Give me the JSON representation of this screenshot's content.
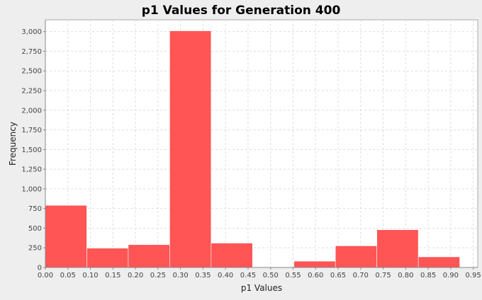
{
  "chart_data": {
    "type": "bar",
    "title": "p1 Values for Generation 400",
    "xlabel": "p1 Values",
    "ylabel": "Frequency",
    "xlim": [
      0.0,
      0.96
    ],
    "ylim": [
      0,
      3150
    ],
    "grid": true,
    "legend": "none",
    "x_ticks": [
      "0.00",
      "0.05",
      "0.10",
      "0.15",
      "0.20",
      "0.25",
      "0.30",
      "0.35",
      "0.40",
      "0.45",
      "0.50",
      "0.55",
      "0.60",
      "0.65",
      "0.70",
      "0.75",
      "0.80",
      "0.85",
      "0.90",
      "0.95"
    ],
    "y_ticks": [
      "0",
      "250",
      "500",
      "750",
      "1,000",
      "1,250",
      "1,500",
      "1,750",
      "2,000",
      "2,250",
      "2,500",
      "2,750",
      "3,000"
    ],
    "bins": [
      {
        "start": 0.0,
        "end": 0.092,
        "value": 790
      },
      {
        "start": 0.092,
        "end": 0.184,
        "value": 245
      },
      {
        "start": 0.184,
        "end": 0.276,
        "value": 290
      },
      {
        "start": 0.276,
        "end": 0.368,
        "value": 3010
      },
      {
        "start": 0.368,
        "end": 0.46,
        "value": 310
      },
      {
        "start": 0.46,
        "end": 0.552,
        "value": 0
      },
      {
        "start": 0.552,
        "end": 0.644,
        "value": 80
      },
      {
        "start": 0.644,
        "end": 0.736,
        "value": 275
      },
      {
        "start": 0.736,
        "end": 0.828,
        "value": 480
      },
      {
        "start": 0.828,
        "end": 0.92,
        "value": 135
      }
    ],
    "colors": {
      "bar": "#ff5555",
      "plot_bg": "#ffffff",
      "grid": "#dddddd",
      "axis": "#888888"
    }
  }
}
